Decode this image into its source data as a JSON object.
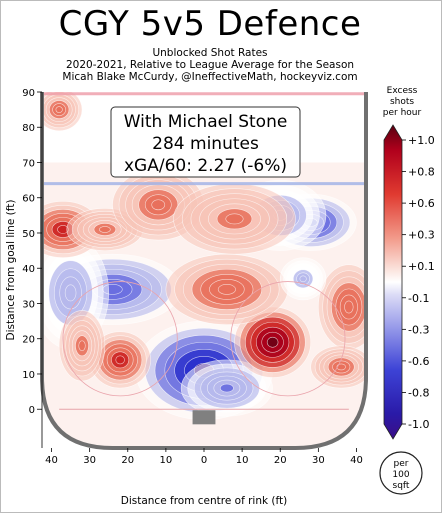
{
  "header": {
    "title": "CGY 5v5 Defence",
    "subtitle_1": "Unblocked Shot Rates",
    "subtitle_2": "2020-2021, Relative to League Average for the Season",
    "subtitle_3": "Micah Blake McCurdy, @IneffectiveMath, hockeyviz.com"
  },
  "infobox": {
    "line1": "With Michael Stone",
    "line2": "284 minutes",
    "line3": "xGA/60: 2.27 (-6%)"
  },
  "colorbar": {
    "title_lines": [
      "Excess",
      "shots",
      "per hour"
    ],
    "tick_labels": [
      "+1.0",
      "+0.8",
      "+0.6",
      "+0.3",
      "+0.1",
      "-0.1",
      "-0.3",
      "-0.6",
      "-0.8",
      "-1.0"
    ],
    "tick_values": [
      1.0,
      0.8,
      0.6,
      0.3,
      0.1,
      -0.1,
      -0.3,
      -0.6,
      -0.8,
      -1.0
    ],
    "colors": [
      "#6e0015",
      "#a8001b",
      "#cc2222",
      "#e8705c",
      "#f7c4b8",
      "#ffffff",
      "#b5b8ec",
      "#6a6ee0",
      "#2a2fcc",
      "#3a0e86"
    ]
  },
  "badge": {
    "lines": [
      "per",
      "100",
      "sqft"
    ]
  },
  "chart_data": {
    "type": "heatmap",
    "xlabel": "Distance from centre of rink (ft)",
    "ylabel": "Distance from goal line (ft)",
    "xlim": [
      -42.5,
      42.5
    ],
    "ylim": [
      -11,
      90
    ],
    "x_ticks": [
      -40,
      -30,
      -20,
      -10,
      0,
      10,
      20,
      30,
      40
    ],
    "x_tick_labels": [
      "40",
      "30",
      "20",
      "10",
      "0",
      "10",
      "20",
      "30",
      "40"
    ],
    "y_ticks": [
      0,
      10,
      20,
      30,
      40,
      50,
      60,
      70,
      80,
      90
    ],
    "y_tick_labels": [
      "0",
      "10",
      "20",
      "30",
      "40",
      "50",
      "60",
      "70",
      "80",
      "90"
    ],
    "regions": [
      {
        "x": 0,
        "y": 11,
        "sx": 9,
        "sy": 7,
        "value": -1.0
      },
      {
        "x": 6,
        "y": 6,
        "sx": 6,
        "sy": 4,
        "value": -0.5
      },
      {
        "x": 18,
        "y": 19,
        "sx": 5,
        "sy": 5,
        "value": 1.0
      },
      {
        "x": 28,
        "y": 53,
        "sx": 6,
        "sy": 4,
        "value": -0.8
      },
      {
        "x": 20,
        "y": 55,
        "sx": 6,
        "sy": 5,
        "value": -0.4
      },
      {
        "x": -24,
        "y": 34,
        "sx": 9,
        "sy": 5,
        "value": -0.7
      },
      {
        "x": -35,
        "y": 33,
        "sx": 5,
        "sy": 8,
        "value": -0.35
      },
      {
        "x": -37,
        "y": 51,
        "sx": 5,
        "sy": 4,
        "value": 0.6
      },
      {
        "x": -26,
        "y": 51,
        "sx": 5,
        "sy": 3,
        "value": 0.25
      },
      {
        "x": -22,
        "y": 14,
        "sx": 4,
        "sy": 4,
        "value": 0.6
      },
      {
        "x": -32,
        "y": 18,
        "sx": 3,
        "sy": 5,
        "value": 0.25
      },
      {
        "x": 6,
        "y": 34,
        "sx": 8,
        "sy": 5,
        "value": 0.35
      },
      {
        "x": -12,
        "y": 58,
        "sx": 6,
        "sy": 5,
        "value": 0.3
      },
      {
        "x": 8,
        "y": 54,
        "sx": 8,
        "sy": 5,
        "value": 0.25
      },
      {
        "x": 38,
        "y": 29,
        "sx": 4,
        "sy": 6,
        "value": 0.4
      },
      {
        "x": 26,
        "y": 37,
        "sx": 3,
        "sy": 3,
        "value": -0.3
      },
      {
        "x": 36,
        "y": 12,
        "sx": 4,
        "sy": 3,
        "value": 0.3
      },
      {
        "x": -38,
        "y": 85,
        "sx": 3,
        "sy": 3,
        "value": 0.3
      }
    ]
  }
}
